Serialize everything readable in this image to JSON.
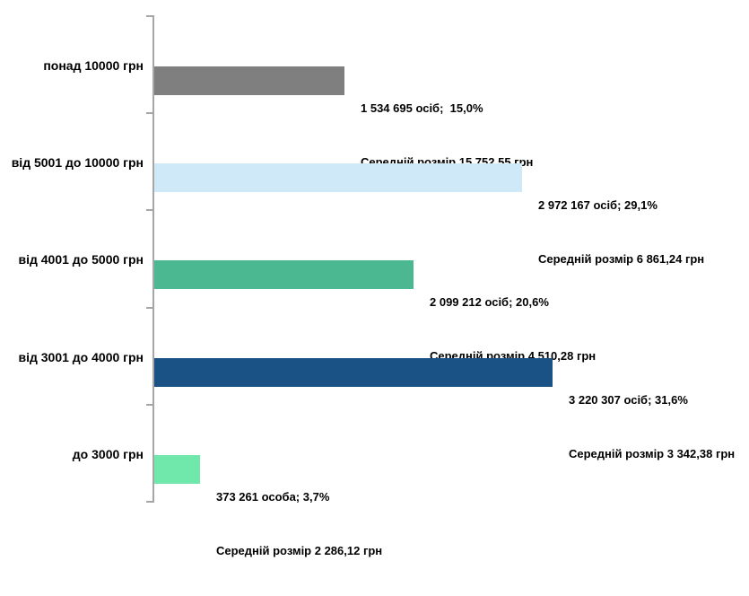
{
  "chart_data": {
    "type": "bar",
    "orientation": "horizontal",
    "title": "",
    "xlabel": "",
    "ylabel": "",
    "legend": "none",
    "gridlines": false,
    "value_axis_labels_visible": false,
    "axis_color": "#a6a6a6",
    "categories": [
      "понад 10000 грн",
      "від 5001 до 10000 грн",
      "від 4001 до 5000 грн",
      "від 3001 до 4000 грн",
      "до 3000 грн"
    ],
    "items": [
      {
        "category": "понад 10000 грн",
        "persons": 1534695,
        "percent": 15.0,
        "avg_amount": 15752.55,
        "color": "#7f7f7f",
        "label_line1": "1 534 695 осіб;  15,0%",
        "label_line2": "Середній розмір 15 752,55 грн"
      },
      {
        "category": "від 5001 до 10000 грн",
        "persons": 2972167,
        "percent": 29.1,
        "avg_amount": 6861.24,
        "color": "#d0e9f8",
        "label_line1": "2 972 167 осіб; 29,1%",
        "label_line2": "Середній розмір 6 861,24 грн"
      },
      {
        "category": "від 4001 до 5000 грн",
        "persons": 2099212,
        "percent": 20.6,
        "avg_amount": 4510.28,
        "color": "#4cb891",
        "label_line1": "2 099 212 осіб; 20,6%",
        "label_line2": "Середній розмір 4 510,28 грн"
      },
      {
        "category": "від 3001 до 4000 грн",
        "persons": 3220307,
        "percent": 31.6,
        "avg_amount": 3342.38,
        "color": "#1a5286",
        "label_line1": "3 220 307 осіб; 31,6%",
        "label_line2": "Середній розмір 3 342,38 грн"
      },
      {
        "category": "до 3000 грн",
        "persons": 373261,
        "percent": 3.7,
        "avg_amount": 2286.12,
        "color": "#71e8ab",
        "label_line1": "373 261 особа; 3,7%",
        "label_line2": "Середній розмір 2 286,12 грн"
      }
    ]
  }
}
